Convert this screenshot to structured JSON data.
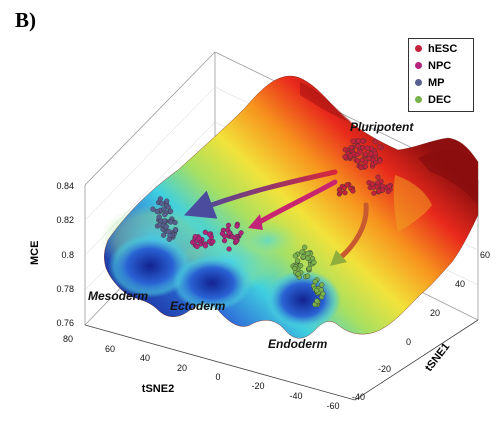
{
  "panel_label": "B)",
  "chart_data": {
    "type": "surface",
    "zlabel": "MCE",
    "xlabel": "tSNE1",
    "ylabel": "tSNE2",
    "zticks": [
      "0.84",
      "0.82",
      "0.8",
      "0.78",
      "0.76"
    ],
    "xticks": [
      "60",
      "40",
      "20",
      "0",
      "-20",
      "-40"
    ],
    "yticks": [
      "80",
      "60",
      "40",
      "20",
      "0",
      "-20",
      "-40",
      "-60"
    ],
    "legend": [
      {
        "name": "hESC",
        "color": "#c4213b"
      },
      {
        "name": "NPC",
        "color": "#b4237a"
      },
      {
        "name": "MP",
        "color": "#585f91"
      },
      {
        "name": "DEC",
        "color": "#78b24a"
      }
    ],
    "annotations": [
      "Pluripotent",
      "Mesoderm",
      "Ectoderm",
      "Endoderm"
    ],
    "colormap": "jet"
  }
}
